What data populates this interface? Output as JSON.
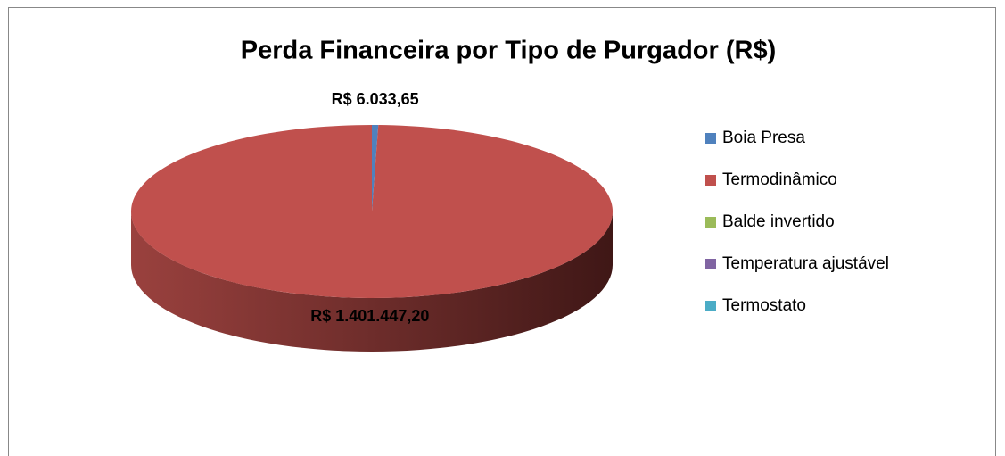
{
  "chart_data": {
    "type": "pie",
    "title": "Perda Financeira por Tipo de Purgador (R$)",
    "categories": [
      "Boia Presa",
      "Termodinâmico",
      "Balde invertido",
      "Temperatura ajustável",
      "Termostato"
    ],
    "values": [
      6033.65,
      1401447.2,
      0,
      0,
      0
    ],
    "value_labels": [
      "R$ 6.033,65",
      "R$ 1.401.447,20",
      null,
      null,
      null
    ],
    "colors": [
      "#4f81bd",
      "#c0504d",
      "#9bbb59",
      "#8064a2",
      "#4bacc6"
    ],
    "legend": "right"
  }
}
